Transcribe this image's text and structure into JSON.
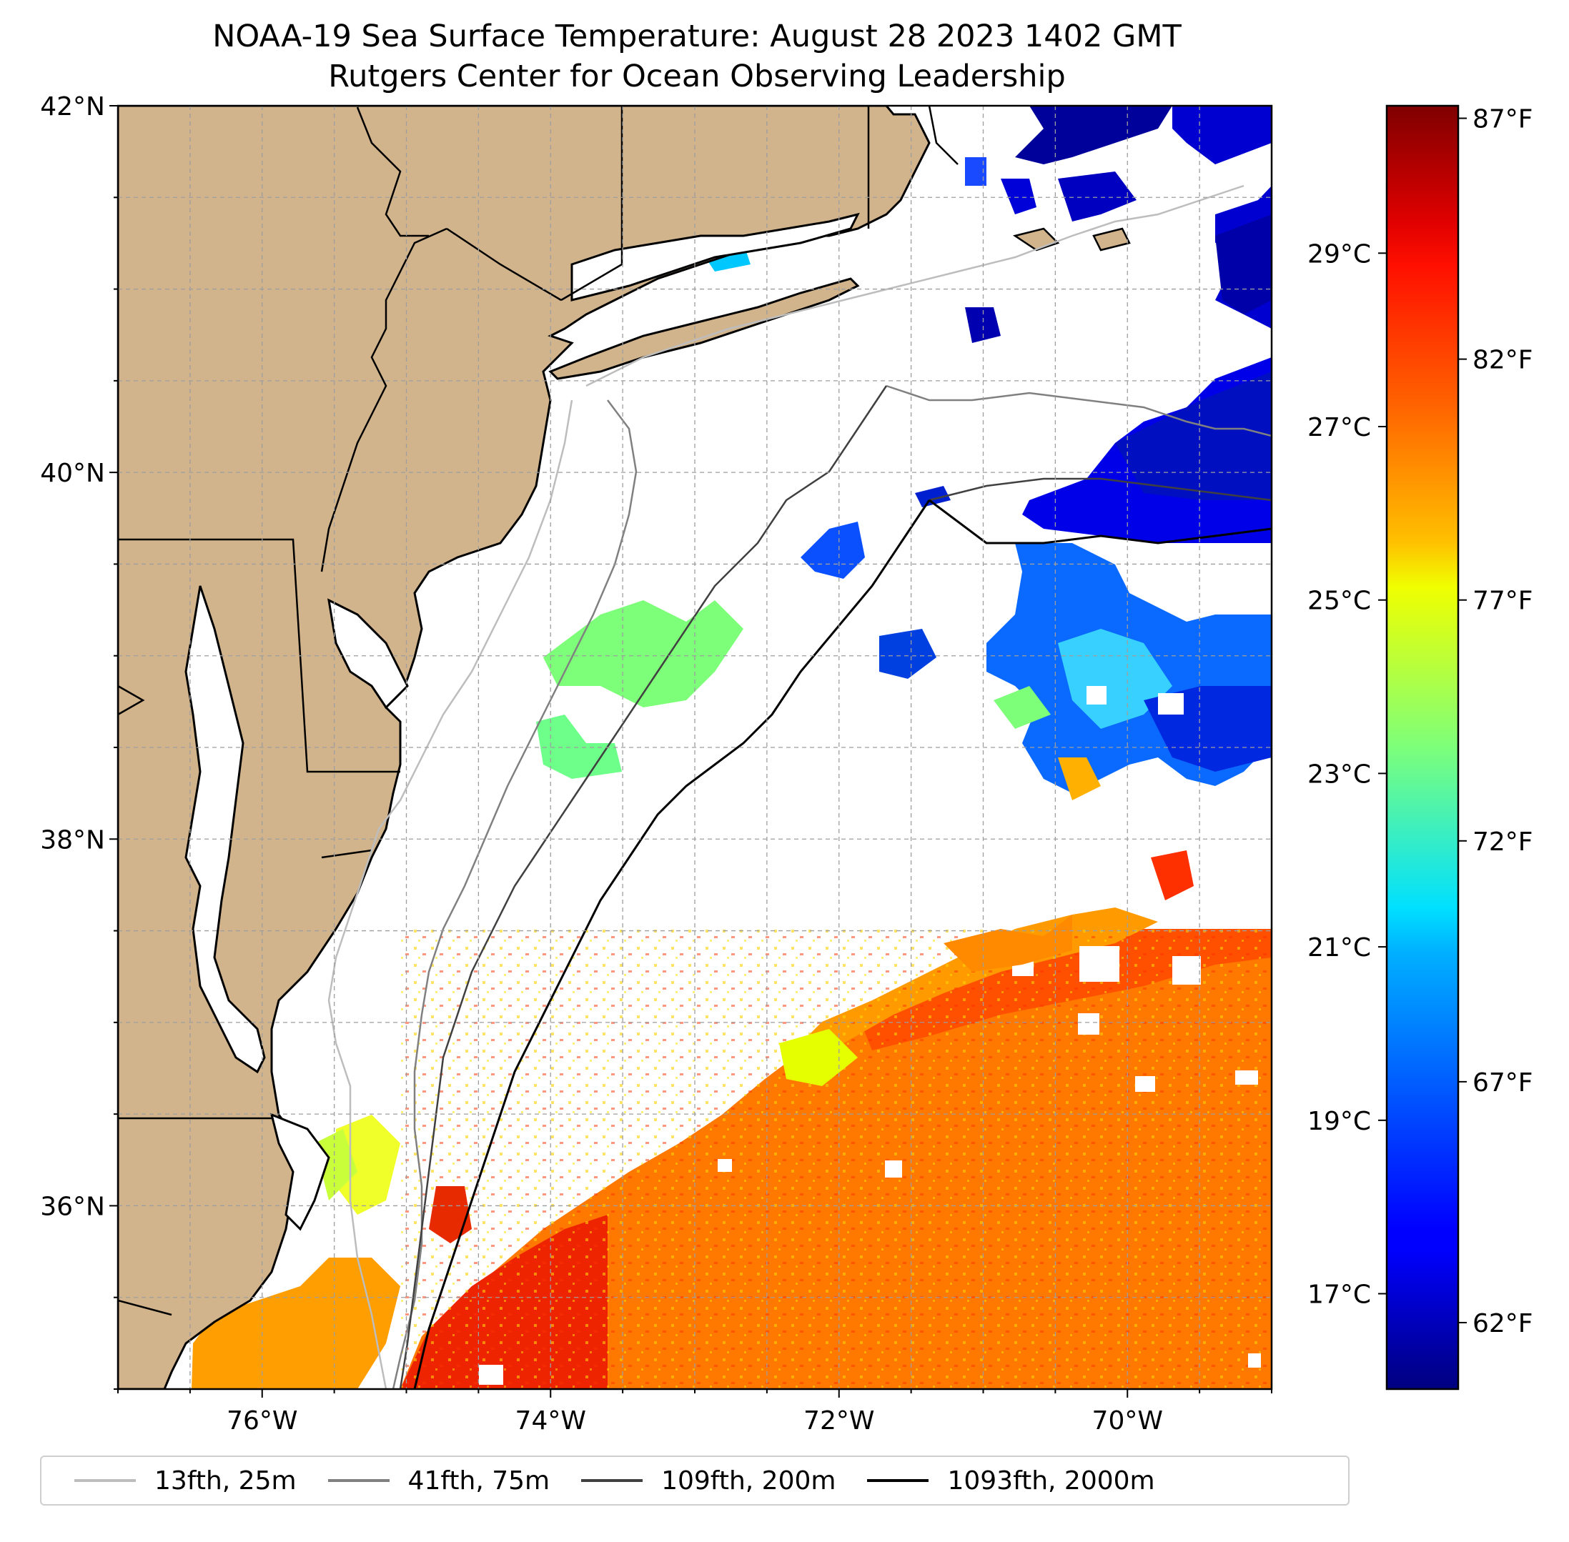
{
  "title": "NOAA-19 Sea Surface Temperature: August 28 2023 1402 GMT",
  "subtitle": "Rutgers Center for Ocean Observing Leadership",
  "map": {
    "lon_range": [
      -77,
      -69
    ],
    "lat_range": [
      35,
      42
    ],
    "lon_ticks": [
      {
        "value": -76,
        "label": "76°W"
      },
      {
        "value": -74,
        "label": "74°W"
      },
      {
        "value": -72,
        "label": "72°W"
      },
      {
        "value": -70,
        "label": "70°W"
      }
    ],
    "lat_ticks": [
      {
        "value": 42,
        "label": "42°N"
      },
      {
        "value": 40,
        "label": "40°N"
      },
      {
        "value": 38,
        "label": "38°N"
      },
      {
        "value": 36,
        "label": "36°N"
      }
    ],
    "land_color": "#d2b48c",
    "gridlines": true
  },
  "colorbar": {
    "colormap": "jet",
    "celsius_range": [
      15.9,
      30.7
    ],
    "celsius_ticks": [
      {
        "value": 17,
        "label": "17°C"
      },
      {
        "value": 19,
        "label": "19°C"
      },
      {
        "value": 21,
        "label": "21°C"
      },
      {
        "value": 23,
        "label": "23°C"
      },
      {
        "value": 25,
        "label": "25°C"
      },
      {
        "value": 27,
        "label": "27°C"
      },
      {
        "value": 29,
        "label": "29°C"
      }
    ],
    "fahrenheit_ticks": [
      {
        "value": 62,
        "label": "62°F"
      },
      {
        "value": 67,
        "label": "67°F"
      },
      {
        "value": 72,
        "label": "72°F"
      },
      {
        "value": 77,
        "label": "77°F"
      },
      {
        "value": 82,
        "label": "82°F"
      },
      {
        "value": 87,
        "label": "87°F"
      }
    ]
  },
  "legend": [
    {
      "label": "13fth, 25m",
      "color": "#bdbdbd"
    },
    {
      "label": "41fth, 75m",
      "color": "#808080"
    },
    {
      "label": "109fth, 200m",
      "color": "#404040"
    },
    {
      "label": "1093fth, 2000m",
      "color": "#000000"
    }
  ]
}
